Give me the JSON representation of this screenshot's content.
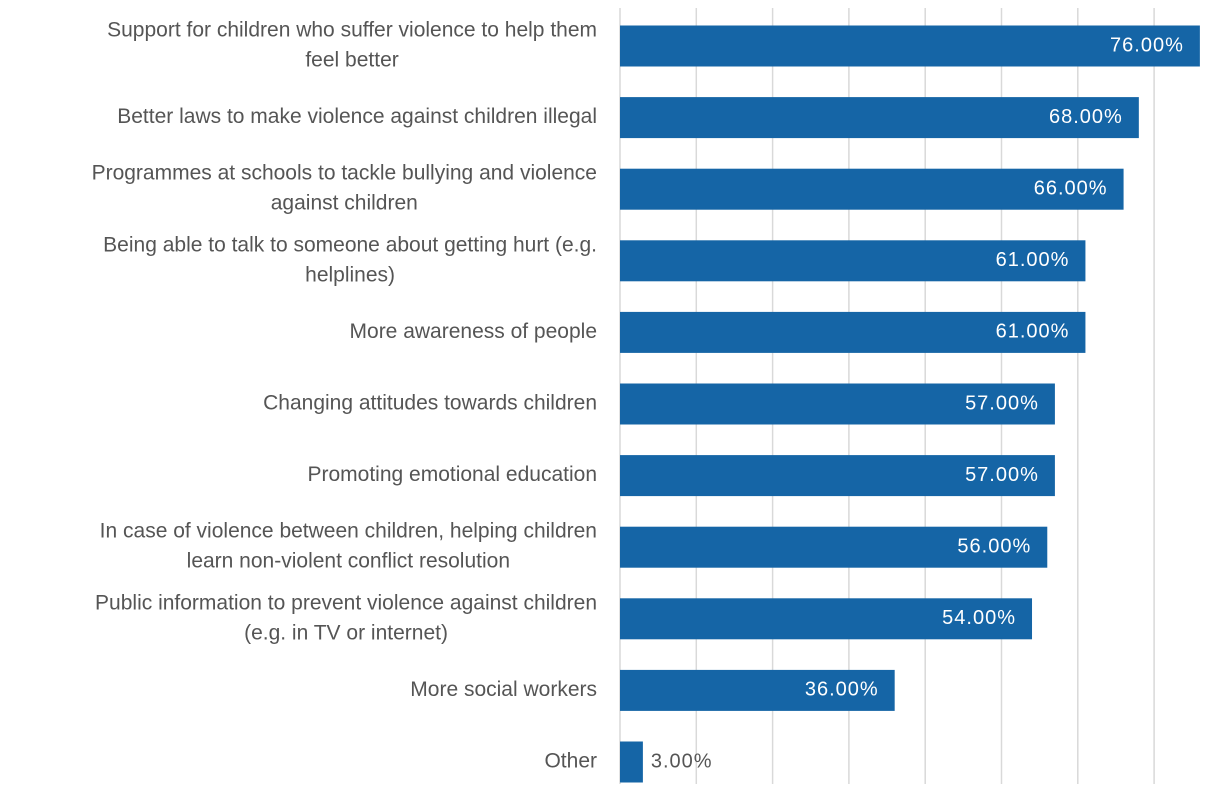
{
  "chart_data": {
    "type": "bar",
    "orientation": "horizontal",
    "categories": [
      "Support for children who suffer violence to help them feel better",
      "Better laws to make violence against children illegal",
      "Programmes at schools to tackle bullying and violence against children",
      "Being able to talk to someone about getting hurt (e.g. helplines)",
      "More awareness of people",
      "Changing attitudes towards children",
      "Promoting emotional education",
      "In case of violence between children, helping children learn non-violent conflict resolution",
      "Public information to prevent violence against children (e.g. in TV or internet)",
      "More social workers",
      "Other"
    ],
    "category_lines": [
      [
        "Support for children who suffer violence to help them",
        "feel better"
      ],
      [
        "Better laws to make violence against children illegal"
      ],
      [
        "Programmes at schools to tackle bullying and violence",
        "against children"
      ],
      [
        "Being able to talk to someone about getting hurt (e.g.",
        "helplines)"
      ],
      [
        "More awareness of people"
      ],
      [
        "Changing attitudes towards children"
      ],
      [
        "Promoting emotional education"
      ],
      [
        "In case of violence between children, helping children",
        "learn non-violent conflict resolution"
      ],
      [
        "Public information to prevent violence against children",
        "(e.g. in TV or internet)"
      ],
      [
        "More social workers"
      ],
      [
        "Other"
      ]
    ],
    "values": [
      76,
      68,
      66,
      61,
      61,
      57,
      57,
      56,
      54,
      36,
      3
    ],
    "data_labels": [
      "76.00%",
      "68.00%",
      "66.00%",
      "61.00%",
      "61.00%",
      "57.00%",
      "57.00%",
      "56.00%",
      "54.00%",
      "36.00%",
      "3.00%"
    ],
    "xlim": [
      0,
      80
    ],
    "grid_step": 10,
    "grid": true,
    "bar_color": "#1565a6",
    "inside_label_color": "#ffffff",
    "outside_label_color": "#555555",
    "gridline_color": "#d9d9d9"
  }
}
